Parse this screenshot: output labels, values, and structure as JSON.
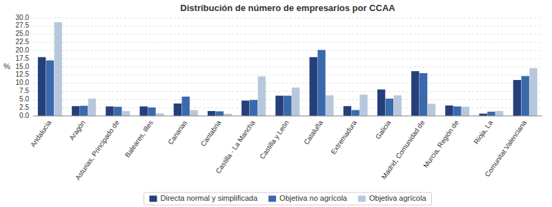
{
  "chart_data": {
    "type": "bar",
    "title": "Distribución de número de empresarios por CCAA",
    "ylabel": "%",
    "categories": [
      "Andalucía",
      "Aragón",
      "Asturias, Principado de",
      "Baleares, Illes",
      "Canarias",
      "Cantabria",
      "Castilla - La Mancha",
      "Castilla y León",
      "Cataluña",
      "Extremadura",
      "Galicia",
      "Madrid, Comunidad de",
      "Murcia, Región de",
      "Rioja, La",
      "Comunitat Valenciana"
    ],
    "series": [
      {
        "name": "Directa normal y simplificada",
        "color": "#243F7A",
        "values": [
          18.0,
          3.0,
          2.9,
          2.9,
          3.8,
          1.5,
          4.7,
          6.2,
          18.0,
          3.0,
          8.1,
          13.7,
          3.2,
          0.7,
          11.0
        ]
      },
      {
        "name": "Objetiva no agrícola",
        "color": "#3A6AAD",
        "values": [
          17.0,
          3.1,
          2.8,
          2.6,
          5.9,
          1.4,
          4.9,
          6.2,
          20.2,
          1.8,
          5.3,
          13.1,
          2.9,
          1.3,
          12.2
        ]
      },
      {
        "name": "Objetiva agrícola",
        "color": "#B8C8DC",
        "values": [
          28.7,
          5.3,
          1.5,
          0.8,
          1.8,
          0.7,
          12.1,
          8.7,
          6.3,
          6.5,
          6.3,
          3.7,
          2.8,
          1.5,
          14.6
        ]
      }
    ],
    "ylim": [
      0,
      30.0
    ],
    "yticks": [
      {
        "value": 0.0,
        "label": "0.0"
      },
      2.5,
      {
        "value": 5.0,
        "label": "5.0"
      },
      7.5,
      {
        "value": 10.0,
        "label": "10.0"
      },
      12.5,
      {
        "value": 15.0,
        "label": "15.0"
      },
      17.5,
      {
        "value": 20.0,
        "label": "20.0"
      },
      22.5,
      {
        "value": 25.0,
        "label": "25.0"
      },
      27.5,
      {
        "value": 30.0,
        "label": "30.0"
      }
    ],
    "grid": true,
    "legend": "bottom"
  }
}
